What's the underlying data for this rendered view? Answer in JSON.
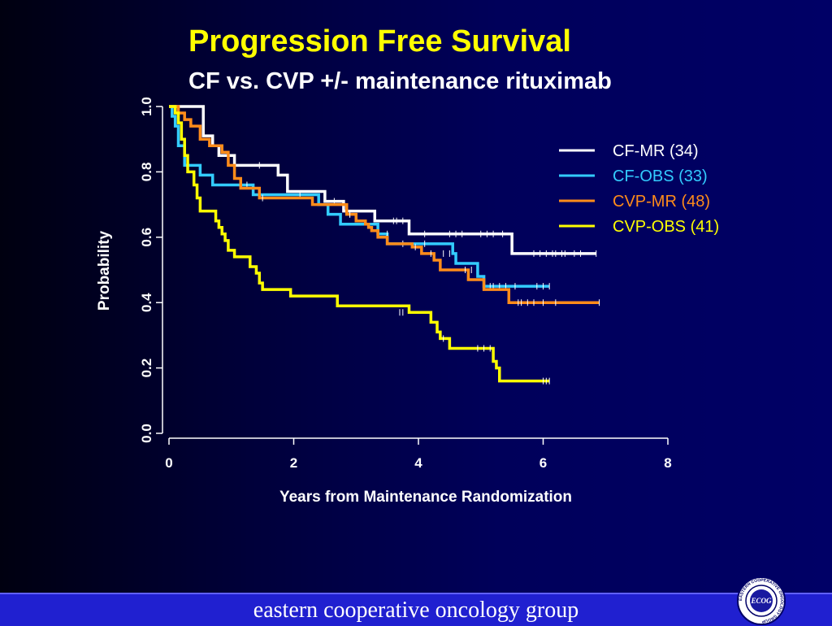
{
  "title": "Progression Free Survival",
  "subtitle": "CF vs. CVP +/- maintenance rituximab",
  "footer": {
    "text": "eastern cooperative oncology group"
  },
  "logo": {
    "center_text": "ECOG",
    "ring_text": "EASTERN COOPERATIVE ONCOLOGY GROUP"
  },
  "colors": {
    "background": "#000066",
    "title": "#ffff00",
    "footer_bar": "#2020d0"
  },
  "chart_data": {
    "type": "line",
    "step": true,
    "xlabel": "Years from Maintenance Randomization",
    "ylabel": "Probability",
    "xlim": [
      0,
      8
    ],
    "ylim": [
      0,
      1
    ],
    "xticks": [
      "0",
      "2",
      "4",
      "6",
      "8"
    ],
    "yticks": [
      "0.0",
      "0.2",
      "0.4",
      "0.6",
      "0.8",
      "1.0"
    ],
    "legend_position": "top-right",
    "series": [
      {
        "name": "CF-MR (34)",
        "color": "#ffffff",
        "x": [
          0,
          0.45,
          0.55,
          0.7,
          0.8,
          1.05,
          1.4,
          1.75,
          1.9,
          2.3,
          2.5,
          2.8,
          3.3,
          3.85,
          4.3,
          5.0,
          5.5,
          6.85
        ],
        "y": [
          1.0,
          1.0,
          0.91,
          0.88,
          0.85,
          0.82,
          0.82,
          0.79,
          0.74,
          0.74,
          0.71,
          0.68,
          0.65,
          0.61,
          0.61,
          0.61,
          0.55,
          0.55
        ],
        "censor_x": [
          1.45,
          2.65,
          3.6,
          3.65,
          3.75,
          4.1,
          4.5,
          4.6,
          4.7,
          5.0,
          5.1,
          5.2,
          5.35,
          5.85,
          5.95,
          6.05,
          6.15,
          6.2,
          6.3,
          6.35,
          6.5,
          6.6,
          6.85
        ],
        "censor_y": [
          0.82,
          0.71,
          0.65,
          0.65,
          0.65,
          0.61,
          0.61,
          0.61,
          0.61,
          0.61,
          0.61,
          0.61,
          0.61,
          0.55,
          0.55,
          0.55,
          0.55,
          0.55,
          0.55,
          0.55,
          0.55,
          0.55,
          0.55
        ]
      },
      {
        "name": "CF-OBS (33)",
        "color": "#33ccff",
        "x": [
          0,
          0.05,
          0.1,
          0.15,
          0.25,
          0.5,
          0.7,
          1.05,
          1.35,
          2.4,
          2.55,
          2.75,
          3.05,
          3.35,
          3.5,
          4.0,
          4.55,
          4.6,
          4.95,
          5.05,
          6.1
        ],
        "y": [
          1.0,
          0.97,
          0.94,
          0.88,
          0.82,
          0.79,
          0.76,
          0.76,
          0.73,
          0.7,
          0.67,
          0.64,
          0.64,
          0.61,
          0.58,
          0.58,
          0.55,
          0.52,
          0.48,
          0.45,
          0.45
        ],
        "censor_x": [
          1.25,
          2.1,
          2.9,
          3.5,
          3.75,
          4.1,
          4.4,
          4.5,
          5.15,
          5.2,
          5.3,
          5.4,
          5.55,
          5.9,
          6.0,
          6.1
        ],
        "censor_y": [
          0.76,
          0.73,
          0.67,
          0.61,
          0.58,
          0.58,
          0.55,
          0.55,
          0.45,
          0.45,
          0.45,
          0.45,
          0.45,
          0.45,
          0.45,
          0.45
        ]
      },
      {
        "name": "CVP-MR (48)",
        "color": "#ff8c1a",
        "x": [
          0,
          0.15,
          0.25,
          0.35,
          0.5,
          0.65,
          0.85,
          0.95,
          1.05,
          1.15,
          1.45,
          2.3,
          2.85,
          3.0,
          3.15,
          3.2,
          3.25,
          3.35,
          3.5,
          3.7,
          3.9,
          4.05,
          4.25,
          4.35,
          4.65,
          4.8,
          5.05,
          5.4,
          5.45,
          6.9
        ],
        "y": [
          1.0,
          0.98,
          0.96,
          0.94,
          0.9,
          0.88,
          0.86,
          0.82,
          0.78,
          0.75,
          0.72,
          0.7,
          0.67,
          0.65,
          0.64,
          0.63,
          0.62,
          0.6,
          0.58,
          0.58,
          0.57,
          0.55,
          0.53,
          0.5,
          0.5,
          0.47,
          0.44,
          0.44,
          0.4,
          0.4
        ],
        "censor_x": [
          1.5,
          2.9,
          3.95,
          4.2,
          4.75,
          4.85,
          5.6,
          5.65,
          5.75,
          5.85,
          6.0,
          6.2,
          6.9
        ],
        "censor_y": [
          0.72,
          0.67,
          0.57,
          0.55,
          0.5,
          0.5,
          0.4,
          0.4,
          0.4,
          0.4,
          0.4,
          0.4,
          0.4
        ]
      },
      {
        "name": "CVP-OBS (41)",
        "color": "#ffff00",
        "x": [
          0,
          0.1,
          0.15,
          0.2,
          0.25,
          0.3,
          0.4,
          0.45,
          0.5,
          0.55,
          0.75,
          0.8,
          0.85,
          0.9,
          0.95,
          1.0,
          1.05,
          1.3,
          1.4,
          1.45,
          1.5,
          1.95,
          2.7,
          3.25,
          3.85,
          3.95,
          4.2,
          4.25,
          4.3,
          4.35,
          4.5,
          5.2,
          5.25,
          5.3,
          6.1
        ],
        "y": [
          1.0,
          0.98,
          0.95,
          0.9,
          0.85,
          0.8,
          0.76,
          0.72,
          0.68,
          0.68,
          0.65,
          0.63,
          0.61,
          0.59,
          0.56,
          0.56,
          0.54,
          0.51,
          0.49,
          0.46,
          0.44,
          0.42,
          0.39,
          0.39,
          0.37,
          0.37,
          0.34,
          0.34,
          0.31,
          0.29,
          0.26,
          0.22,
          0.2,
          0.16,
          0.16
        ],
        "censor_x": [
          3.7,
          3.75,
          4.4,
          4.95,
          5.05,
          5.15,
          6.0,
          6.05,
          6.1
        ],
        "censor_y": [
          0.37,
          0.37,
          0.29,
          0.26,
          0.26,
          0.26,
          0.16,
          0.16,
          0.16
        ]
      }
    ]
  }
}
